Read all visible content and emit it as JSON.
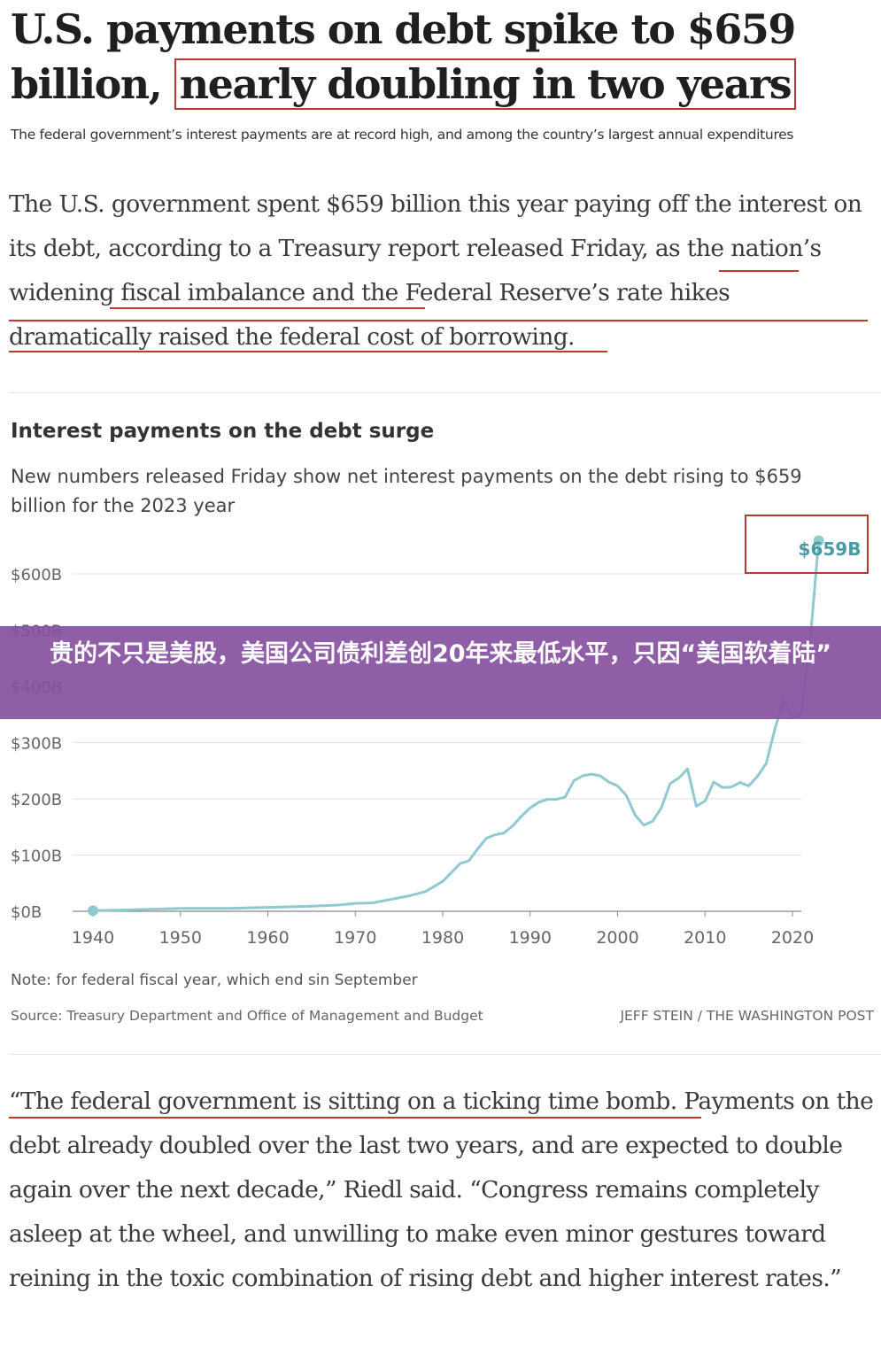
{
  "headline": {
    "part1": "U.S. payments on debt spike to $659 billion,",
    "part2": "nearly doubling in two years"
  },
  "dek": "The federal government’s interest payments are at record high, and among the country’s largest annual expenditures",
  "paragraph1": "The U.S. government spent $659 billion this year paying off the interest on its debt, according to a Treasury report released Friday, as the nation’s widening fiscal imbalance and the Federal Reserve’s rate hikes dramatically raised the federal cost of borrowing.",
  "banner": {
    "text": "贵的不只是美股，美国公司债利差创20年来最低水平，只因“美国软着陆”"
  },
  "note": "Note: for federal fiscal year, which end sin September",
  "source": "Source: Treasury Department and Office of Management and Budget",
  "credit": "JEFF STEIN / THE WASHINGTON POST",
  "paragraph2": "“The federal government is sitting on a ticking time bomb. Payments on the debt already doubled over the last two years, and are expected to double again over the next decade,” Riedl said. “Congress remains completely asleep at the wheel, and unwilling to make even minor gestures toward reining in the toxic combination of rising debt and higher interest rates.”",
  "colors": {
    "line": "#8fcad0",
    "label": "#4a9aa3",
    "highlight": "#b33a2c",
    "banner": "#8650a0"
  },
  "chart_data": {
    "type": "line",
    "title": "Interest payments on the debt surge",
    "subtitle": "New numbers released Friday show net interest payments on the debt rising to $659 billion for the 2023 year",
    "xlabel": "",
    "ylabel": "",
    "xlim": [
      1940,
      2023
    ],
    "ylim": [
      0,
      600
    ],
    "x_ticks": [
      1940,
      1950,
      1960,
      1970,
      1980,
      1990,
      2000,
      2010,
      2020
    ],
    "y_ticks": [
      0,
      100,
      200,
      300,
      400,
      500,
      600
    ],
    "y_tick_labels": [
      "$0B",
      "$100B",
      "$200B",
      "$300B",
      "$400B",
      "$500B",
      "$600B"
    ],
    "grid": "horizontal",
    "annotation": "$659B",
    "series": [
      {
        "x": [
          1940,
          1945,
          1950,
          1955,
          1960,
          1965,
          1968,
          1970,
          1972,
          1974,
          1976,
          1978,
          1980,
          1981,
          1982,
          1983,
          1984,
          1985,
          1986,
          1987,
          1988,
          1989,
          1990,
          1991,
          1992,
          1993,
          1994,
          1995,
          1996,
          1997,
          1998,
          1999,
          2000,
          2001,
          2002,
          2003,
          2004,
          2005,
          2006,
          2007,
          2008,
          2009,
          2010,
          2011,
          2012,
          2013,
          2014,
          2015,
          2016,
          2017,
          2018,
          2019,
          2020,
          2021,
          2022,
          2023
        ],
        "y": [
          1,
          3,
          5,
          5,
          7,
          9,
          11,
          14,
          15,
          21,
          27,
          35,
          53,
          69,
          85,
          90,
          111,
          130,
          136,
          139,
          152,
          169,
          184,
          194,
          199,
          199,
          203,
          232,
          241,
          244,
          241,
          230,
          223,
          206,
          171,
          153,
          160,
          184,
          227,
          237,
          253,
          187,
          196,
          230,
          220,
          221,
          229,
          223,
          240,
          263,
          325,
          375,
          345,
          352,
          475,
          659
        ]
      }
    ]
  }
}
